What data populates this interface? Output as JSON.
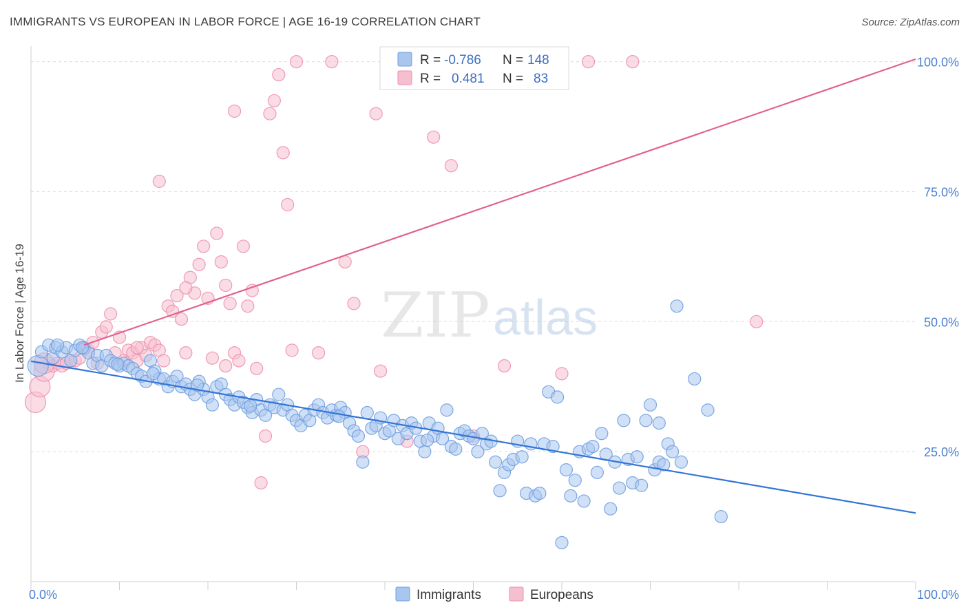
{
  "title": "IMMIGRANTS VS EUROPEAN IN LABOR FORCE | AGE 16-19 CORRELATION CHART",
  "source": "Source: ZipAtlas.com",
  "watermark": {
    "zip": "ZIP",
    "atlas": "atlas"
  },
  "colors": {
    "blue_fill": "#a9c6ef",
    "blue_stroke": "#6f9fe0",
    "blue_line": "#3275d6",
    "pink_fill": "#f6bfd0",
    "pink_stroke": "#ee8fae",
    "pink_line": "#e2628b",
    "tick_text": "#4a7fd0",
    "grid": "#dcdcdc"
  },
  "legend_box": {
    "rows": [
      {
        "r_label": "R =",
        "r_value": "-0.786",
        "n_label": "N =",
        "n_value": "148"
      },
      {
        "r_label": "R =",
        "r_value": "0.481",
        "n_label": "N =",
        "n_value": "83"
      }
    ]
  },
  "bottom_legend": [
    "Immigrants",
    "Europeans"
  ],
  "chart_data": {
    "type": "scatter",
    "title": "IMMIGRANTS VS EUROPEAN IN LABOR FORCE | AGE 16-19 CORRELATION CHART",
    "xlabel": "",
    "ylabel": "In Labor Force | Age 16-19",
    "xlim": [
      0,
      100
    ],
    "ylim": [
      0,
      103
    ],
    "x_tick_labels": [
      "0.0%",
      "100.0%"
    ],
    "y_ticks": [
      25,
      50,
      75,
      100
    ],
    "y_tick_labels": [
      "25.0%",
      "50.0%",
      "75.0%",
      "100.0%"
    ],
    "grid": true,
    "legend_position": "top-center",
    "series": [
      {
        "name": "Immigrants",
        "r": -0.786,
        "n": 148,
        "trend": {
          "x": [
            0,
            100
          ],
          "y": [
            42.4,
            13.2
          ]
        },
        "points": [
          [
            0.8,
            41.5
          ],
          [
            1.2,
            44.2
          ],
          [
            2.0,
            45.5
          ],
          [
            2.5,
            43.0
          ],
          [
            2.8,
            45.0
          ],
          [
            3.5,
            44.2
          ],
          [
            4.0,
            45.0
          ],
          [
            4.5,
            42.5
          ],
          [
            5.0,
            44.5
          ],
          [
            5.5,
            45.5
          ],
          [
            6.0,
            44.8
          ],
          [
            6.5,
            44.0
          ],
          [
            7.0,
            42.0
          ],
          [
            7.5,
            43.5
          ],
          [
            8.0,
            41.5
          ],
          [
            8.5,
            43.5
          ],
          [
            9.0,
            42.5
          ],
          [
            9.5,
            42.0
          ],
          [
            10.0,
            41.5
          ],
          [
            10.5,
            42.0
          ],
          [
            11.0,
            41.5
          ],
          [
            11.5,
            41.0
          ],
          [
            12.0,
            40.0
          ],
          [
            12.5,
            39.5
          ],
          [
            13.0,
            38.5
          ],
          [
            13.5,
            42.5
          ],
          [
            14.0,
            40.5
          ],
          [
            14.5,
            39.0
          ],
          [
            15.0,
            39.0
          ],
          [
            15.5,
            37.5
          ],
          [
            16.0,
            38.5
          ],
          [
            16.5,
            39.5
          ],
          [
            17.0,
            37.5
          ],
          [
            17.5,
            38.0
          ],
          [
            18.0,
            37.0
          ],
          [
            18.5,
            36.0
          ],
          [
            19.0,
            38.5
          ],
          [
            19.5,
            37.0
          ],
          [
            20.0,
            35.5
          ],
          [
            20.5,
            34.0
          ],
          [
            21.0,
            37.5
          ],
          [
            21.5,
            38.0
          ],
          [
            22.0,
            36.0
          ],
          [
            22.5,
            35.0
          ],
          [
            23.0,
            34.0
          ],
          [
            23.5,
            35.5
          ],
          [
            24.0,
            34.5
          ],
          [
            24.5,
            33.5
          ],
          [
            25.0,
            32.5
          ],
          [
            25.5,
            35.0
          ],
          [
            26.0,
            33.0
          ],
          [
            26.5,
            32.0
          ],
          [
            27.0,
            34.0
          ],
          [
            27.5,
            33.5
          ],
          [
            28.0,
            36.0
          ],
          [
            28.5,
            33.0
          ],
          [
            29.0,
            34.0
          ],
          [
            29.5,
            32.0
          ],
          [
            30.0,
            31.0
          ],
          [
            30.5,
            30.0
          ],
          [
            31.0,
            32.0
          ],
          [
            31.5,
            31.0
          ],
          [
            32.0,
            33.0
          ],
          [
            32.5,
            34.0
          ],
          [
            33.0,
            32.5
          ],
          [
            33.5,
            31.5
          ],
          [
            34.0,
            33.0
          ],
          [
            34.5,
            32.0
          ],
          [
            35.0,
            33.5
          ],
          [
            35.5,
            32.5
          ],
          [
            36.0,
            30.5
          ],
          [
            36.5,
            29.0
          ],
          [
            37.0,
            28.0
          ],
          [
            37.5,
            23.0
          ],
          [
            38.0,
            32.5
          ],
          [
            38.5,
            29.5
          ],
          [
            39.0,
            30.0
          ],
          [
            39.5,
            31.5
          ],
          [
            40.0,
            28.5
          ],
          [
            40.5,
            29.0
          ],
          [
            41.0,
            31.0
          ],
          [
            41.5,
            27.5
          ],
          [
            42.0,
            30.0
          ],
          [
            42.5,
            28.5
          ],
          [
            43.0,
            30.5
          ],
          [
            43.5,
            29.5
          ],
          [
            44.0,
            27.0
          ],
          [
            44.5,
            25.0
          ],
          [
            45.0,
            30.5
          ],
          [
            45.5,
            28.0
          ],
          [
            46.0,
            29.5
          ],
          [
            46.5,
            27.5
          ],
          [
            47.0,
            33.0
          ],
          [
            47.5,
            26.0
          ],
          [
            48.0,
            25.5
          ],
          [
            48.5,
            28.5
          ],
          [
            49.0,
            29.0
          ],
          [
            49.5,
            28.0
          ],
          [
            50.0,
            27.5
          ],
          [
            50.5,
            25.0
          ],
          [
            51.0,
            28.5
          ],
          [
            51.5,
            26.5
          ],
          [
            52.0,
            27.0
          ],
          [
            52.5,
            23.0
          ],
          [
            53.0,
            17.5
          ],
          [
            53.5,
            21.0
          ],
          [
            54.0,
            22.5
          ],
          [
            54.5,
            23.5
          ],
          [
            55.0,
            27.0
          ],
          [
            55.5,
            24.0
          ],
          [
            56.0,
            17.0
          ],
          [
            56.5,
            26.5
          ],
          [
            57.0,
            16.5
          ],
          [
            57.5,
            17.0
          ],
          [
            58.0,
            26.5
          ],
          [
            58.5,
            36.5
          ],
          [
            59.0,
            26.0
          ],
          [
            59.5,
            35.5
          ],
          [
            60.0,
            7.5
          ],
          [
            60.5,
            21.5
          ],
          [
            61.0,
            16.5
          ],
          [
            61.5,
            19.5
          ],
          [
            62.0,
            25.0
          ],
          [
            62.5,
            15.5
          ],
          [
            63.0,
            25.5
          ],
          [
            63.5,
            26.0
          ],
          [
            64.0,
            21.0
          ],
          [
            64.5,
            28.5
          ],
          [
            65.0,
            24.5
          ],
          [
            65.5,
            14.0
          ],
          [
            66.0,
            23.0
          ],
          [
            66.5,
            18.0
          ],
          [
            67.0,
            31.0
          ],
          [
            67.5,
            23.5
          ],
          [
            68.0,
            19.0
          ],
          [
            68.5,
            24.0
          ],
          [
            69.0,
            18.5
          ],
          [
            69.5,
            31.0
          ],
          [
            70.0,
            34.0
          ],
          [
            70.5,
            21.5
          ],
          [
            71.0,
            23.0
          ],
          [
            71.5,
            22.5
          ],
          [
            72.0,
            26.5
          ],
          [
            72.5,
            25.0
          ],
          [
            73.0,
            53.0
          ],
          [
            73.5,
            23.0
          ],
          [
            75.0,
            39.0
          ],
          [
            76.5,
            33.0
          ],
          [
            78.0,
            12.5
          ],
          [
            71.0,
            30.5
          ],
          [
            3.0,
            45.5
          ],
          [
            5.8,
            45.0
          ],
          [
            9.8,
            41.8
          ],
          [
            13.8,
            40.0
          ],
          [
            18.8,
            37.8
          ],
          [
            24.8,
            33.8
          ],
          [
            34.8,
            31.8
          ],
          [
            44.8,
            27.2
          ]
        ]
      },
      {
        "name": "Europeans",
        "r": 0.481,
        "n": 83,
        "trend": {
          "x": [
            6,
            100
          ],
          "y": [
            45.5,
            100.5
          ]
        },
        "points": [
          [
            0.5,
            34.5
          ],
          [
            1.0,
            37.5
          ],
          [
            1.5,
            40.5
          ],
          [
            2.0,
            42.0
          ],
          [
            2.5,
            41.5
          ],
          [
            3.0,
            42.0
          ],
          [
            3.5,
            41.5
          ],
          [
            4.0,
            42.0
          ],
          [
            4.5,
            42.5
          ],
          [
            5.0,
            42.5
          ],
          [
            5.5,
            43.0
          ],
          [
            6.0,
            45.0
          ],
          [
            6.5,
            44.5
          ],
          [
            7.0,
            46.0
          ],
          [
            7.5,
            42.0
          ],
          [
            8.0,
            48.0
          ],
          [
            8.5,
            49.0
          ],
          [
            9.0,
            51.5
          ],
          [
            9.5,
            44.0
          ],
          [
            10.0,
            47.0
          ],
          [
            10.5,
            42.5
          ],
          [
            11.0,
            44.5
          ],
          [
            11.5,
            44.0
          ],
          [
            12.0,
            42.5
          ],
          [
            12.5,
            45.0
          ],
          [
            13.0,
            43.5
          ],
          [
            13.5,
            46.0
          ],
          [
            14.0,
            45.5
          ],
          [
            14.5,
            44.5
          ],
          [
            15.0,
            42.5
          ],
          [
            15.5,
            53.0
          ],
          [
            16.0,
            52.0
          ],
          [
            16.5,
            55.0
          ],
          [
            17.0,
            50.5
          ],
          [
            17.5,
            44.0
          ],
          [
            18.0,
            58.5
          ],
          [
            18.5,
            55.5
          ],
          [
            19.0,
            61.0
          ],
          [
            19.5,
            64.5
          ],
          [
            20.0,
            54.5
          ],
          [
            20.5,
            43.0
          ],
          [
            21.0,
            67.0
          ],
          [
            21.5,
            61.5
          ],
          [
            22.0,
            57.0
          ],
          [
            22.5,
            53.5
          ],
          [
            23.0,
            44.0
          ],
          [
            23.5,
            42.5
          ],
          [
            24.0,
            64.5
          ],
          [
            24.5,
            53.0
          ],
          [
            25.0,
            56.0
          ],
          [
            25.5,
            41.0
          ],
          [
            26.0,
            19.0
          ],
          [
            26.5,
            28.0
          ],
          [
            27.0,
            90.0
          ],
          [
            27.5,
            92.5
          ],
          [
            28.0,
            97.5
          ],
          [
            28.5,
            82.5
          ],
          [
            29.0,
            72.5
          ],
          [
            29.5,
            44.5
          ],
          [
            30.0,
            100.0
          ],
          [
            32.5,
            44.0
          ],
          [
            34.0,
            100.0
          ],
          [
            35.5,
            61.5
          ],
          [
            36.5,
            53.5
          ],
          [
            37.5,
            25.0
          ],
          [
            39.0,
            90.0
          ],
          [
            39.5,
            40.5
          ],
          [
            41.5,
            100.0
          ],
          [
            42.5,
            27.0
          ],
          [
            45.5,
            85.5
          ],
          [
            47.5,
            80.0
          ],
          [
            50.0,
            28.0
          ],
          [
            53.5,
            41.5
          ],
          [
            60.0,
            40.0
          ],
          [
            63.0,
            100.0
          ],
          [
            68.0,
            100.0
          ],
          [
            82.0,
            50.0
          ],
          [
            23.0,
            90.5
          ],
          [
            22.0,
            41.5
          ],
          [
            14.5,
            77.0
          ],
          [
            17.5,
            56.5
          ],
          [
            12.0,
            45.0
          ],
          [
            1.5,
            42.0
          ]
        ]
      }
    ]
  }
}
